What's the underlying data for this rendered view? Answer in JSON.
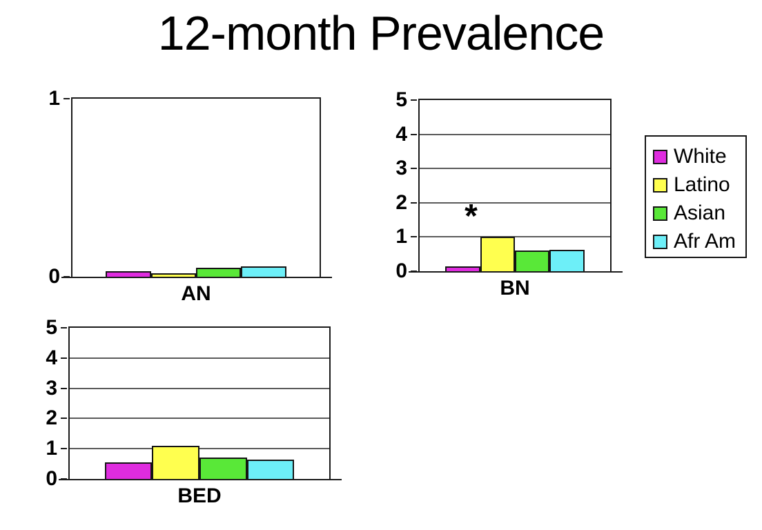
{
  "slide": {
    "title": "12-month Prevalence"
  },
  "legend": {
    "items": [
      {
        "label": "White",
        "color": "#DF2CDF"
      },
      {
        "label": "Latino",
        "color": "#FFFF4F"
      },
      {
        "label": "Asian",
        "color": "#59E838"
      },
      {
        "label": "Afr Am",
        "color": "#6DEFF8"
      }
    ]
  },
  "chart_data": [
    {
      "type": "bar",
      "title": "AN",
      "categories": [
        "White",
        "Latino",
        "Asian",
        "Afr Am"
      ],
      "values": [
        0.03,
        0.02,
        0.05,
        0.06
      ],
      "ylim": [
        0,
        1
      ],
      "yticks": [
        0,
        1
      ],
      "gridlines": false,
      "legend_position": "outside-right",
      "annotation": null
    },
    {
      "type": "bar",
      "title": "BN",
      "categories": [
        "White",
        "Latino",
        "Asian",
        "Afr Am"
      ],
      "values": [
        0.15,
        1.0,
        0.6,
        0.62
      ],
      "ylim": [
        0,
        5
      ],
      "yticks": [
        0,
        1,
        2,
        3,
        4,
        5
      ],
      "gridlines": true,
      "legend_position": "outside-right",
      "annotation": {
        "text": "*",
        "x_frac": 0.27,
        "y_value": 1.1
      }
    },
    {
      "type": "bar",
      "title": "BED",
      "categories": [
        "White",
        "Latino",
        "Asian",
        "Afr Am"
      ],
      "values": [
        0.55,
        1.1,
        0.7,
        0.65
      ],
      "ylim": [
        0,
        5
      ],
      "yticks": [
        0,
        1,
        2,
        3,
        4,
        5
      ],
      "gridlines": true,
      "legend_position": "outside-right",
      "annotation": null
    }
  ]
}
